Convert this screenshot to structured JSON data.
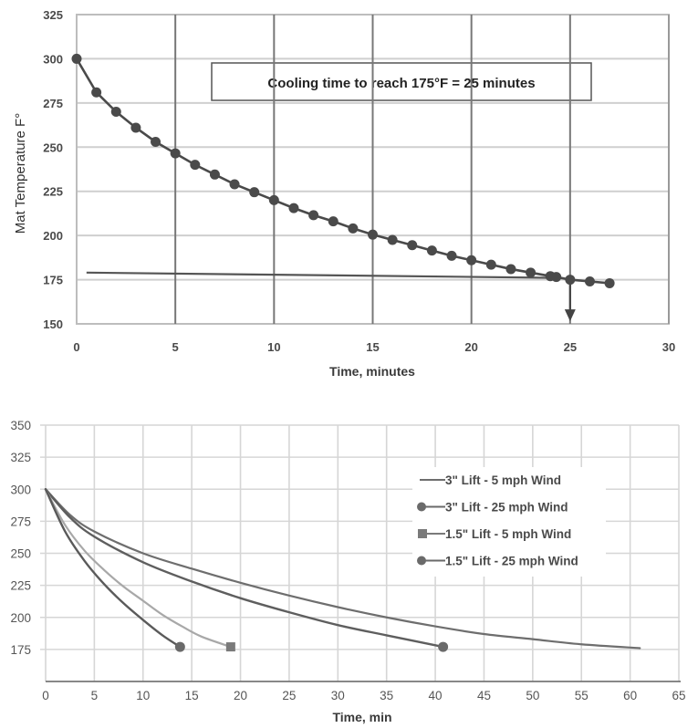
{
  "chart_data": [
    {
      "type": "line",
      "title": "",
      "annotation": "Cooling time to reach 175°F = 25 minutes",
      "xlabel": "Time, minutes",
      "ylabel": "Mat Temperature F°",
      "xlim": [
        0,
        30
      ],
      "ylim": [
        150,
        325
      ],
      "xticks": [
        "0",
        "5",
        "10",
        "15",
        "20",
        "25",
        "30"
      ],
      "yticks": [
        "150",
        "175",
        "200",
        "225",
        "250",
        "275",
        "300",
        "325"
      ],
      "grid": true,
      "legend": null,
      "series": [
        {
          "name": "Mat temperature",
          "marker": "circle",
          "x": [
            0,
            1,
            2,
            3,
            4,
            5,
            6,
            7,
            8,
            9,
            10,
            11,
            12,
            13,
            14,
            15,
            16,
            17,
            18,
            19,
            20,
            21,
            22,
            23,
            24,
            24.3,
            25,
            26,
            27
          ],
          "values": [
            300,
            281,
            270,
            261,
            253,
            246.5,
            240,
            234.5,
            229,
            224.5,
            220,
            215.5,
            211.5,
            208,
            204,
            200.5,
            197.5,
            194.5,
            191.5,
            188.5,
            186,
            183.5,
            181,
            179,
            177,
            176.5,
            175,
            174,
            173
          ]
        }
      ],
      "reference_lines": [
        {
          "name": "175°F target line",
          "x": [
            0.5,
            24.5
          ],
          "values": [
            179,
            176
          ]
        },
        {
          "name": "25 minute drop arrow",
          "x": [
            25,
            25
          ],
          "values": [
            175,
            152
          ]
        }
      ]
    },
    {
      "type": "line",
      "title": "",
      "xlabel": "Time, min",
      "ylabel": "",
      "xlim": [
        0,
        65
      ],
      "ylim": [
        150,
        350
      ],
      "xticks": [
        "0",
        "5",
        "10",
        "15",
        "20",
        "25",
        "30",
        "35",
        "40",
        "45",
        "50",
        "55",
        "60",
        "65"
      ],
      "yticks": [
        "175",
        "200",
        "225",
        "250",
        "275",
        "300",
        "325",
        "350"
      ],
      "grid": true,
      "legend_position": "upper right (inside)",
      "series": [
        {
          "name": "3\" Lift - 5 mph Wind",
          "marker": "none",
          "x": [
            0,
            2.5,
            5,
            10,
            15,
            20,
            25,
            30,
            35,
            40,
            45,
            50,
            55,
            61
          ],
          "values": [
            300,
            280,
            267,
            250,
            238,
            227,
            217,
            208,
            200,
            193,
            187,
            183,
            179,
            176
          ]
        },
        {
          "name": "3\" Lift - 25 mph Wind",
          "marker": "circle",
          "x": [
            0,
            2.5,
            5,
            10,
            15,
            20,
            25,
            30,
            35,
            40.8
          ],
          "values": [
            300,
            278,
            263,
            243,
            228,
            215,
            204,
            194,
            186,
            177
          ]
        },
        {
          "name": "1.5\" Lift - 5 mph Wind",
          "marker": "square",
          "x": [
            0,
            2,
            4,
            6,
            8,
            10,
            12,
            14,
            16,
            19
          ],
          "values": [
            300,
            272,
            252,
            237,
            224,
            213,
            202,
            193,
            185,
            177
          ]
        },
        {
          "name": "1.5\" Lift - 25 mph Wind",
          "marker": "circle",
          "x": [
            0,
            2,
            4,
            6,
            8,
            10,
            12,
            13.8
          ],
          "values": [
            300,
            267,
            244,
            226,
            211,
            198,
            186,
            177
          ]
        }
      ]
    }
  ],
  "colors": {
    "series_dark": "#555555",
    "series_light": "#999999",
    "grid_major_chart1": "#777777",
    "grid_minor": "#d0d0d0"
  }
}
